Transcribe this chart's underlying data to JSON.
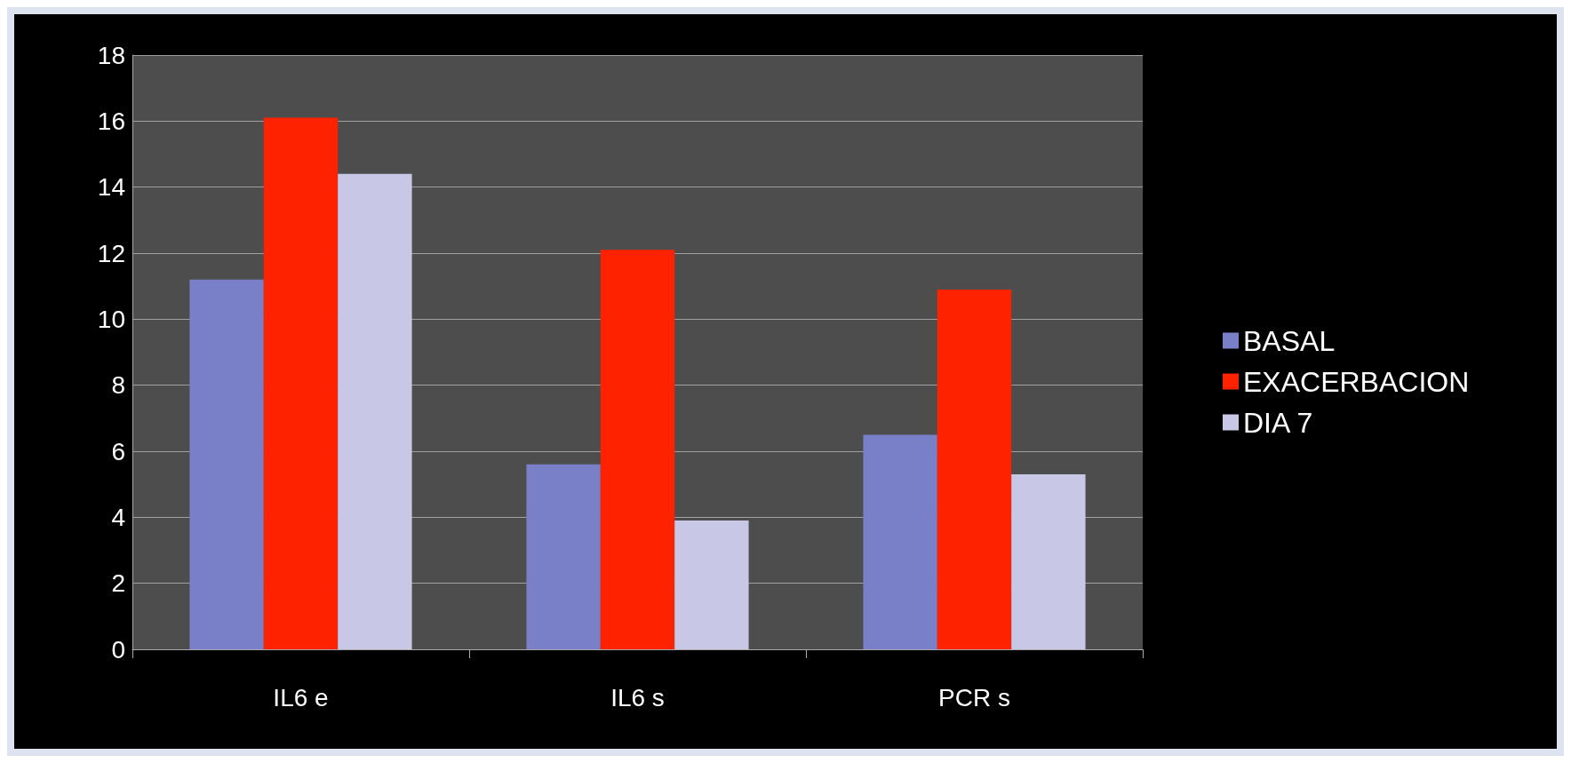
{
  "chart_data": {
    "type": "bar",
    "categories": [
      "IL6 e",
      "IL6 s",
      "PCR s"
    ],
    "series": [
      {
        "name": "BASAL",
        "color": "#7a80c8",
        "values": [
          11.2,
          5.6,
          6.5
        ]
      },
      {
        "name": "EXACERBACION",
        "color": "#ff2200",
        "values": [
          16.1,
          12.1,
          10.9
        ]
      },
      {
        "name": "DIA 7",
        "color": "#c8c8e6",
        "values": [
          14.4,
          3.9,
          5.3
        ]
      }
    ],
    "ylim": [
      0,
      18
    ],
    "yticks": [
      0,
      2,
      4,
      6,
      8,
      10,
      12,
      14,
      16,
      18
    ],
    "grid": "y",
    "legend": "right"
  }
}
